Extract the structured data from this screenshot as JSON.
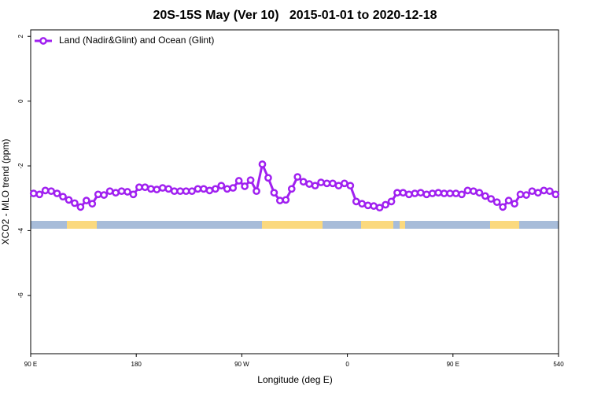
{
  "chart_data": {
    "type": "line",
    "title": "20S-15S May (Ver 10)   2015-01-01 to 2020-12-18",
    "xlabel": "Longitude (deg E)",
    "ylabel": "XCO2 - MLO trend (ppm)",
    "xlim": [
      90,
      540
    ],
    "xticks": [
      {
        "value": 90,
        "label": "90 E"
      },
      180,
      {
        "value": 270,
        "label": "90 W"
      },
      {
        "value": 360,
        "label": "0"
      },
      {
        "value": 450,
        "label": "90 E"
      },
      540
    ],
    "ylim": [
      -7.8,
      2.2
    ],
    "yticks": [
      2,
      0,
      -2,
      -4,
      -6
    ],
    "legend": "top-left",
    "x": [
      92.5,
      97.5,
      102.5,
      107.5,
      112.5,
      117.5,
      122.5,
      127.5,
      132.5,
      137.5,
      142.5,
      147.5,
      152.5,
      157.5,
      162.5,
      167.5,
      172.5,
      177.5,
      182.5,
      187.5,
      192.5,
      197.5,
      202.5,
      207.5,
      212.5,
      217.5,
      222.5,
      227.5,
      232.5,
      237.5,
      242.5,
      247.5,
      252.5,
      257.5,
      262.5,
      267.5,
      272.5,
      277.5,
      282.5,
      287.5,
      292.5,
      297.5,
      302.5,
      307.5,
      312.5,
      317.5,
      322.5,
      327.5,
      332.5,
      337.5,
      342.5,
      347.5,
      352.5,
      357.5,
      362.5,
      367.5,
      372.5,
      377.5,
      382.5,
      387.5,
      392.5,
      397.5,
      402.5,
      407.5,
      412.5,
      417.5,
      422.5,
      427.5,
      432.5,
      437.5,
      442.5,
      447.5,
      452.5,
      457.5,
      462.5,
      467.5,
      472.5,
      477.5,
      482.5,
      487.5,
      492.5,
      497.5,
      502.5,
      507.5,
      512.5,
      517.5,
      522.5,
      527.5,
      532.5,
      537.5
    ],
    "series": [
      {
        "name": "Land (Nadir&Glint) and Ocean (Glint)",
        "color": "#a020f0",
        "values": [
          -2.85,
          -2.88,
          -2.76,
          -2.78,
          -2.85,
          -2.95,
          -3.05,
          -3.15,
          -3.27,
          -3.07,
          -3.17,
          -2.88,
          -2.9,
          -2.78,
          -2.83,
          -2.78,
          -2.8,
          -2.88,
          -2.66,
          -2.66,
          -2.71,
          -2.73,
          -2.68,
          -2.71,
          -2.78,
          -2.78,
          -2.78,
          -2.78,
          -2.71,
          -2.71,
          -2.76,
          -2.71,
          -2.61,
          -2.71,
          -2.68,
          -2.46,
          -2.63,
          -2.44,
          -2.78,
          -1.95,
          -2.37,
          -2.83,
          -3.07,
          -3.05,
          -2.71,
          -2.34,
          -2.49,
          -2.56,
          -2.61,
          -2.51,
          -2.54,
          -2.54,
          -2.61,
          -2.54,
          -2.61,
          -3.1,
          -3.17,
          -3.22,
          -3.24,
          -3.29,
          -3.2,
          -3.1,
          -2.83,
          -2.83,
          -2.88,
          -2.85,
          -2.83,
          -2.88,
          -2.85,
          -2.83,
          -2.85,
          -2.85,
          -2.85,
          -2.88,
          -2.76,
          -2.78,
          -2.83,
          -2.93,
          -3.02,
          -3.12,
          -3.27,
          -3.07,
          -3.17,
          -2.88,
          -2.9,
          -2.78,
          -2.83,
          -2.76,
          -2.78,
          -2.88
        ]
      }
    ]
  }
}
